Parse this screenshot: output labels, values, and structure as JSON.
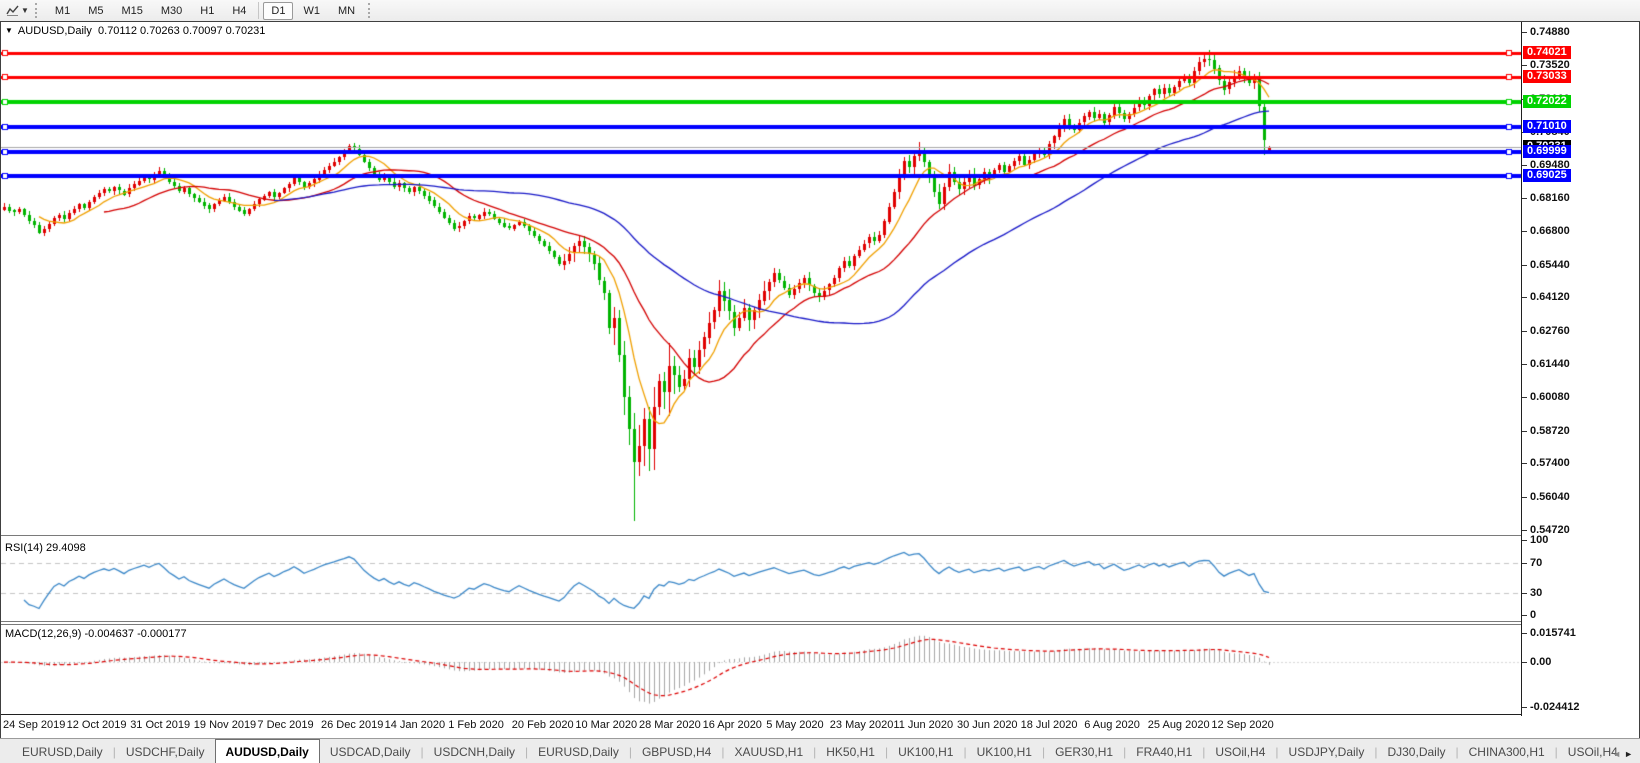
{
  "toolbar": {
    "timeframes": [
      "M1",
      "M5",
      "M15",
      "M30",
      "H1",
      "H4",
      "D1",
      "W1",
      "MN"
    ],
    "active_timeframe": "D1"
  },
  "chart": {
    "title_symbol": "AUDUSD,Daily",
    "title_ohlc": "0.70112 0.70263 0.70097 0.70231",
    "rsi_label": "RSI(14) 29.4098",
    "macd_label": "MACD(12,26,9) -0.004637 -0.000177"
  },
  "chart_data": {
    "type": "candlestick",
    "symbol": "AUDUSD",
    "timeframe": "Daily",
    "current_bar": {
      "open": 0.70112,
      "high": 0.70263,
      "low": 0.70097,
      "close": 0.70231
    },
    "current_price": 0.70231,
    "y_axis": {
      "max": 0.75277,
      "min": 0.545,
      "ticks": [
        0.7488,
        0.7352,
        0.7216,
        0.7084,
        0.6948,
        0.6816,
        0.668,
        0.6544,
        0.6412,
        0.6276,
        0.6144,
        0.6008,
        0.5872,
        0.574,
        0.5604,
        0.5472
      ]
    },
    "x_labels": [
      "24 Sep 2019",
      "12 Oct 2019",
      "31 Oct 2019",
      "19 Nov 2019",
      "7 Dec 2019",
      "26 Dec 2019",
      "14 Jan 2020",
      "1 Feb 2020",
      "20 Feb 2020",
      "10 Mar 2020",
      "28 Mar 2020",
      "16 Apr 2020",
      "5 May 2020",
      "23 May 2020",
      "11 Jun 2020",
      "30 Jun 2020",
      "18 Jul 2020",
      "6 Aug 2020",
      "25 Aug 2020",
      "12 Sep 2020"
    ],
    "h_lines": [
      {
        "price": 0.74021,
        "color": "#ff0000",
        "width": 3
      },
      {
        "price": 0.73033,
        "color": "#ff0000",
        "width": 3
      },
      {
        "price": 0.72022,
        "color": "#00d300",
        "width": 4
      },
      {
        "price": 0.7101,
        "color": "#0000ff",
        "width": 4
      },
      {
        "price": 0.69999,
        "color": "#0000ff",
        "width": 4
      },
      {
        "price": 0.69025,
        "color": "#0000ff",
        "width": 4
      }
    ],
    "candles": {
      "bull_color": "#e00000",
      "bear_color": "#00b400",
      "closes": [
        0.678,
        0.6765,
        0.6758,
        0.677,
        0.6745,
        0.672,
        0.6705,
        0.6672,
        0.669,
        0.671,
        0.6735,
        0.6748,
        0.673,
        0.6755,
        0.677,
        0.679,
        0.6775,
        0.68,
        0.682,
        0.6835,
        0.685,
        0.684,
        0.6858,
        0.6845,
        0.683,
        0.6855,
        0.687,
        0.6885,
        0.69,
        0.689,
        0.691,
        0.6925,
        0.6905,
        0.688,
        0.6862,
        0.684,
        0.6855,
        0.683,
        0.6815,
        0.68,
        0.6785,
        0.677,
        0.679,
        0.6805,
        0.682,
        0.68,
        0.678,
        0.6765,
        0.675,
        0.677,
        0.679,
        0.681,
        0.6825,
        0.684,
        0.682,
        0.6835,
        0.6855,
        0.687,
        0.6895,
        0.688,
        0.686,
        0.6875,
        0.689,
        0.691,
        0.693,
        0.6945,
        0.696,
        0.698,
        0.7,
        0.7025,
        0.7015,
        0.699,
        0.696,
        0.6935,
        0.691,
        0.689,
        0.6905,
        0.688,
        0.686,
        0.6875,
        0.6855,
        0.684,
        0.686,
        0.6845,
        0.6825,
        0.6805,
        0.678,
        0.676,
        0.6735,
        0.6715,
        0.669,
        0.67,
        0.672,
        0.674,
        0.673,
        0.6745,
        0.676,
        0.675,
        0.673,
        0.6715,
        0.67,
        0.669,
        0.6705,
        0.6718,
        0.67,
        0.668,
        0.666,
        0.664,
        0.662,
        0.66,
        0.6575,
        0.6545,
        0.656,
        0.659,
        0.662,
        0.664,
        0.6615,
        0.6585,
        0.655,
        0.648,
        0.643,
        0.629,
        0.633,
        0.618,
        0.601,
        0.588,
        0.5745,
        0.581,
        0.592,
        0.58,
        0.597,
        0.6075,
        0.603,
        0.6135,
        0.61,
        0.605,
        0.608,
        0.6165,
        0.613,
        0.62,
        0.625,
        0.631,
        0.636,
        0.644,
        0.64,
        0.6355,
        0.629,
        0.633,
        0.637,
        0.632,
        0.636,
        0.64,
        0.644,
        0.6475,
        0.651,
        0.648,
        0.645,
        0.642,
        0.6445,
        0.647,
        0.649,
        0.646,
        0.643,
        0.6415,
        0.644,
        0.6465,
        0.649,
        0.653,
        0.656,
        0.654,
        0.658,
        0.6605,
        0.663,
        0.6655,
        0.664,
        0.6665,
        0.672,
        0.678,
        0.684,
        0.69,
        0.6965,
        0.694,
        0.6985,
        0.7,
        0.696,
        0.69,
        0.684,
        0.679,
        0.686,
        0.692,
        0.688,
        0.685,
        0.688,
        0.691,
        0.6865,
        0.689,
        0.692,
        0.6905,
        0.693,
        0.695,
        0.692,
        0.6945,
        0.6965,
        0.6985,
        0.695,
        0.697,
        0.6995,
        0.701,
        0.699,
        0.7035,
        0.7065,
        0.71,
        0.7135,
        0.711,
        0.709,
        0.712,
        0.7145,
        0.7165,
        0.714,
        0.7155,
        0.712,
        0.715,
        0.7185,
        0.716,
        0.7135,
        0.7155,
        0.718,
        0.721,
        0.719,
        0.723,
        0.7255,
        0.7235,
        0.726,
        0.724,
        0.7265,
        0.729,
        0.731,
        0.728,
        0.733,
        0.7365,
        0.7376,
        0.7375,
        0.734,
        0.729,
        0.7255,
        0.7285,
        0.731,
        0.733,
        0.7305,
        0.728,
        0.73,
        0.7185,
        0.705,
        0.7023
      ],
      "volatility_segments": [
        [
          0,
          111,
          0.0016
        ],
        [
          112,
          121,
          0.0035
        ],
        [
          122,
          134,
          0.01
        ],
        [
          135,
          155,
          0.0045
        ],
        [
          156,
          175,
          0.0025
        ],
        [
          176,
          197,
          0.0032
        ],
        [
          198,
          240,
          0.002
        ],
        [
          241,
          253,
          0.0026
        ]
      ],
      "overrides": {
        "7": {
          "l": 0.667
        },
        "31": {
          "h": 0.6939
        },
        "69": {
          "h": 0.7032
        },
        "126": {
          "l": 0.5506
        },
        "183": {
          "h": 0.704
        },
        "241": {
          "h": 0.7413
        },
        "252": {
          "l": 0.699
        },
        "253": {
          "o": 0.70112,
          "h": 0.70263,
          "l": 0.70097
        }
      }
    },
    "moving_averages": [
      {
        "period": 8,
        "color": "#f0a000",
        "style": "solid"
      },
      {
        "period": 21,
        "color": "#d40000",
        "style": "solid"
      },
      {
        "period": 55,
        "color": "#1818c8",
        "style": "solid"
      }
    ],
    "rsi": {
      "period": 14,
      "value": 29.4098,
      "levels": [
        70,
        30
      ],
      "color": "#3a87c8",
      "y_axis": {
        "max": 101.5,
        "min": -7.5,
        "ticks": [
          100,
          70,
          30,
          0
        ]
      }
    },
    "macd": {
      "fast": 12,
      "slow": 26,
      "signal": 9,
      "value": -0.004637,
      "signal_value": -0.000177,
      "hist_color": "#a6a6a6",
      "signal_color": "#dd0000",
      "y_axis": {
        "max": 0.0201,
        "min": -0.0282,
        "ticks": [
          0.015741,
          0,
          -0.024412
        ],
        "tick_labels": [
          "0.015741",
          "0.00",
          "-0.024412"
        ]
      }
    }
  },
  "tabs": {
    "active_index": 2,
    "items": [
      "EURUSD,Daily",
      "USDCHF,Daily",
      "AUDUSD,Daily",
      "USDCAD,Daily",
      "USDCNH,Daily",
      "EURUSD,Daily",
      "GBPUSD,H4",
      "XAUUSD,H1",
      "HK50,H1",
      "UK100,H1",
      "UK100,H1",
      "GER30,H1",
      "FRA40,H1",
      "USOil,H4",
      "USDJPY,Daily",
      "DJ30,Daily",
      "CHINA300,H1",
      "USOil,H4"
    ],
    "scroll_left_arrow": "◄",
    "scroll_right_arrow": "►"
  }
}
